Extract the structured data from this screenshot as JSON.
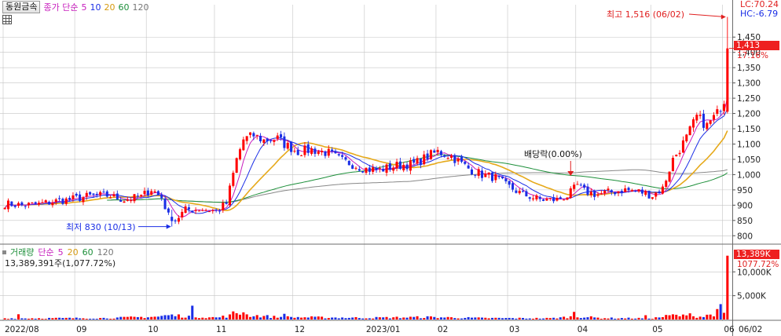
{
  "header": {
    "stock_name": "동원금속",
    "ma_title": "종가 단순",
    "ma_periods": [
      "5",
      "10",
      "20",
      "60",
      "120"
    ],
    "lc_label": "LC:70.24",
    "hc_label": "HC:-6.79"
  },
  "volume_header": {
    "title": "거래량",
    "ma_title": "단순",
    "ma_periods": [
      "5",
      "20",
      "60",
      "120"
    ],
    "current_value": "13,389,391주(1,077.72%)"
  },
  "current": {
    "price_label": "1,413",
    "price_change_label": "17.16%",
    "price_value": 1413,
    "volume_label": "13,389K",
    "volume_change_label": "1077.72%",
    "volume_value": 13389
  },
  "annotations": {
    "high_label": "최고 1,516 (06/02)",
    "low_label": "최저 830 (10/13)",
    "dividend_label": "배당락(0.00%)"
  },
  "colors": {
    "up": "#ff0000",
    "down": "#1a2ee6",
    "ma5": "#c71dbd",
    "ma10": "#1a2ee6",
    "ma20": "#e6a91a",
    "ma60": "#1d8f3a",
    "ma120": "#888888",
    "grid": "#c4c4c4"
  },
  "chart_data": {
    "type": "candlestick",
    "price_axis": {
      "ylim": [
        775,
        1520
      ],
      "ticks": [
        800,
        850,
        900,
        950,
        1000,
        1050,
        1100,
        1150,
        1200,
        1250,
        1300,
        1350,
        1400,
        1450
      ],
      "tick_labels": [
        "800",
        "850",
        "900",
        "950",
        "1,000",
        "1,050",
        "1,100",
        "1,150",
        "1,200",
        "1,250",
        "1,300",
        "1,350",
        "1,400",
        "1,450"
      ]
    },
    "volume_axis": {
      "ylim": [
        0,
        14000
      ],
      "ticks": [
        5000,
        10000
      ],
      "tick_labels": [
        "5,000K",
        "10,000K"
      ],
      "unit": "K"
    },
    "x_axis": {
      "labels": [
        "2022/08",
        "09",
        "10",
        "11",
        "12",
        "2023/01",
        "02",
        "03",
        "04",
        "05",
        "06"
      ],
      "label_index": [
        0,
        21,
        42,
        62,
        85,
        106,
        127,
        148,
        168,
        190,
        211
      ],
      "right_label": "06/02"
    },
    "anchors": [
      [
        0,
        905
      ],
      [
        5,
        900
      ],
      [
        10,
        903
      ],
      [
        15,
        913
      ],
      [
        20,
        920
      ],
      [
        25,
        930
      ],
      [
        30,
        932
      ],
      [
        35,
        918
      ],
      [
        40,
        928
      ],
      [
        43,
        952
      ],
      [
        46,
        925
      ],
      [
        48,
        865
      ],
      [
        50,
        850
      ],
      [
        53,
        885
      ],
      [
        58,
        888
      ],
      [
        62,
        880
      ],
      [
        65,
        905
      ],
      [
        68,
        1050
      ],
      [
        70,
        1115
      ],
      [
        73,
        1128
      ],
      [
        76,
        1112
      ],
      [
        80,
        1118
      ],
      [
        82,
        1100
      ],
      [
        86,
        1075
      ],
      [
        90,
        1082
      ],
      [
        95,
        1070
      ],
      [
        99,
        1045
      ],
      [
        103,
        1030
      ],
      [
        106,
        1018
      ],
      [
        110,
        1015
      ],
      [
        115,
        1030
      ],
      [
        120,
        1035
      ],
      [
        124,
        1060
      ],
      [
        127,
        1075
      ],
      [
        131,
        1060
      ],
      [
        136,
        1020
      ],
      [
        140,
        1000
      ],
      [
        144,
        990
      ],
      [
        147,
        965
      ],
      [
        152,
        935
      ],
      [
        157,
        918
      ],
      [
        162,
        918
      ],
      [
        165,
        930
      ],
      [
        168,
        965
      ],
      [
        170,
        945
      ],
      [
        174,
        935
      ],
      [
        179,
        945
      ],
      [
        182,
        950
      ],
      [
        186,
        945
      ],
      [
        190,
        932
      ],
      [
        193,
        955
      ],
      [
        196,
        1050
      ],
      [
        200,
        1120
      ],
      [
        203,
        1190
      ],
      [
        206,
        1160
      ],
      [
        209,
        1200
      ],
      [
        211,
        1245
      ],
      [
        212,
        1413
      ]
    ],
    "volume_anchors": [
      [
        0,
        250
      ],
      [
        30,
        300
      ],
      [
        45,
        600
      ],
      [
        48,
        900
      ],
      [
        62,
        400
      ],
      [
        66,
        800
      ],
      [
        68,
        1400
      ],
      [
        70,
        1000
      ],
      [
        80,
        500
      ],
      [
        90,
        450
      ],
      [
        106,
        350
      ],
      [
        124,
        500
      ],
      [
        140,
        300
      ],
      [
        160,
        250
      ],
      [
        168,
        650
      ],
      [
        175,
        300
      ],
      [
        190,
        250
      ],
      [
        196,
        900
      ],
      [
        200,
        700
      ],
      [
        205,
        600
      ],
      [
        209,
        1500
      ],
      [
        210,
        2300
      ],
      [
        211,
        1100
      ],
      [
        212,
        13389
      ]
    ],
    "volume_spikes": {
      "4": 1100,
      "55": 2900,
      "67": 1700,
      "70": 1500,
      "82": 1200,
      "167": 1600,
      "188": 900,
      "201": 1300
    },
    "high": {
      "value": 1516,
      "date": "06/02"
    },
    "low": {
      "value": 830,
      "date": "10/13"
    },
    "ex_dividend_index": 166,
    "n_bars": 213
  }
}
